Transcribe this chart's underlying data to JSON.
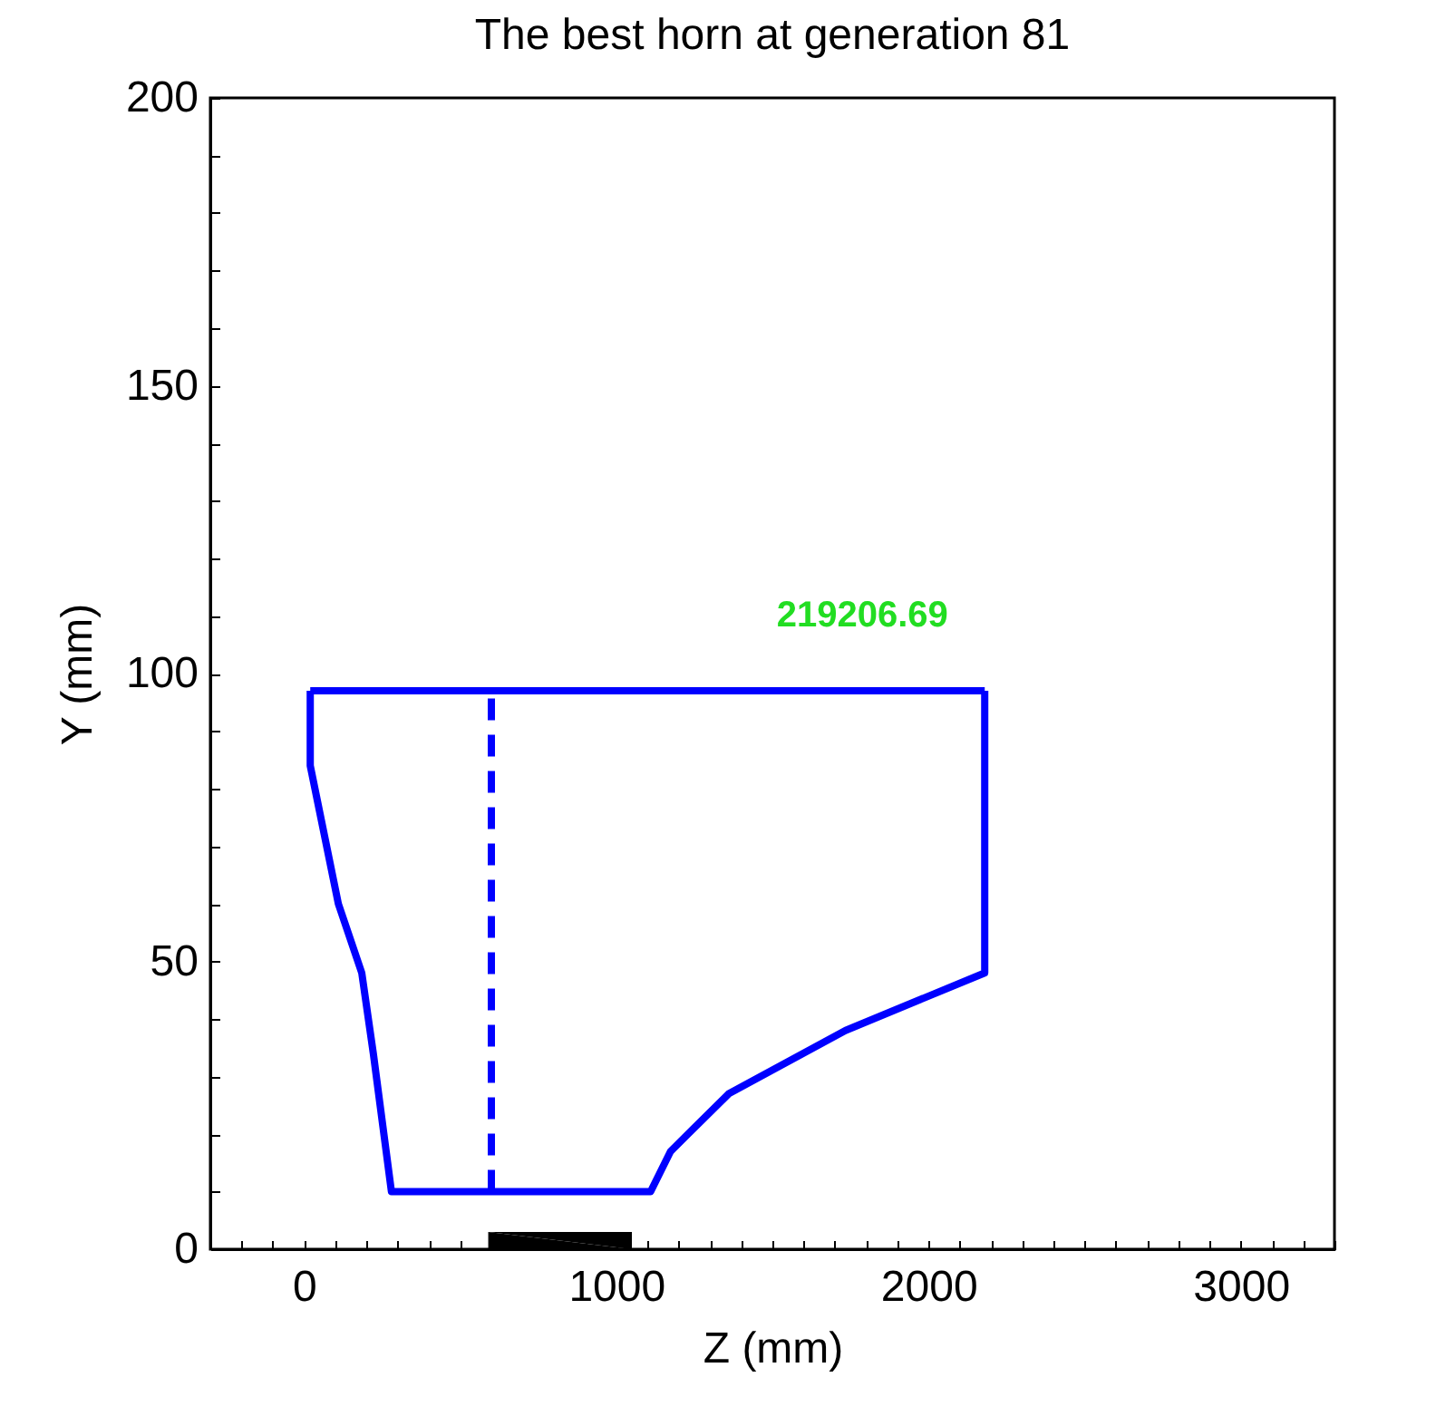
{
  "chart_data": {
    "type": "line",
    "title": "The best horn at generation 81",
    "xlabel": "Z (mm)",
    "ylabel": "Y (mm)",
    "xlim": [
      -300,
      3300
    ],
    "ylim": [
      0,
      200
    ],
    "xticks": [
      {
        "value": -300,
        "label": null
      },
      {
        "value": -200,
        "label": null
      },
      {
        "value": -100,
        "label": null
      },
      0,
      {
        "value": 100,
        "label": null
      },
      {
        "value": 200,
        "label": null
      },
      {
        "value": 300,
        "label": null
      },
      {
        "value": 400,
        "label": null
      },
      {
        "value": 500,
        "label": null
      },
      {
        "value": 600,
        "label": null
      },
      {
        "value": 700,
        "label": null
      },
      {
        "value": 800,
        "label": null
      },
      {
        "value": 900,
        "label": null
      },
      1000,
      {
        "value": 1100,
        "label": null
      },
      {
        "value": 1200,
        "label": null
      },
      {
        "value": 1300,
        "label": null
      },
      {
        "value": 1400,
        "label": null
      },
      {
        "value": 1500,
        "label": null
      },
      {
        "value": 1600,
        "label": null
      },
      {
        "value": 1700,
        "label": null
      },
      {
        "value": 1800,
        "label": null
      },
      {
        "value": 1900,
        "label": null
      },
      2000,
      {
        "value": 2100,
        "label": null
      },
      {
        "value": 2200,
        "label": null
      },
      {
        "value": 2300,
        "label": null
      },
      {
        "value": 2400,
        "label": null
      },
      {
        "value": 2500,
        "label": null
      },
      {
        "value": 2600,
        "label": null
      },
      {
        "value": 2700,
        "label": null
      },
      {
        "value": 2800,
        "label": null
      },
      {
        "value": 2900,
        "label": null
      },
      3000,
      {
        "value": 3100,
        "label": null
      },
      {
        "value": 3200,
        "label": null
      },
      {
        "value": 3300,
        "label": null
      }
    ],
    "yticks": [
      0,
      {
        "value": 10,
        "label": null
      },
      {
        "value": 20,
        "label": null
      },
      {
        "value": 30,
        "label": null
      },
      {
        "value": 40,
        "label": null
      },
      50,
      {
        "value": 60,
        "label": null
      },
      {
        "value": 70,
        "label": null
      },
      {
        "value": 80,
        "label": null
      },
      {
        "value": 90,
        "label": null
      },
      100,
      {
        "value": 110,
        "label": null
      },
      {
        "value": 120,
        "label": null
      },
      {
        "value": 130,
        "label": null
      },
      {
        "value": 140,
        "label": null
      },
      150,
      {
        "value": 160,
        "label": null
      },
      {
        "value": 170,
        "label": null
      },
      {
        "value": 180,
        "label": null
      },
      {
        "value": 190,
        "label": null
      },
      200
    ],
    "series": [
      {
        "type": "line",
        "color": "#0000ff",
        "x": [
          20,
          20,
          110,
          185,
          222,
          280,
          1110,
          1174,
          1360,
          1734,
          2180,
          2180
        ],
        "values": [
          97,
          84,
          60,
          48,
          34,
          10,
          10,
          17,
          27,
          38,
          48,
          97
        ]
      },
      {
        "type": "line",
        "color": "#0000ff",
        "x": [
          20,
          2180
        ],
        "values": [
          97,
          97
        ]
      },
      {
        "type": "line",
        "color": "#0000ff",
        "line_style": "dashed",
        "x": [
          600,
          600
        ],
        "values": [
          10,
          97
        ]
      },
      {
        "type": "area",
        "color": "#000000",
        "x": [
          590,
          1050
        ],
        "values": [
          3,
          3
        ]
      }
    ],
    "annotations": [
      "219206.69"
    ]
  }
}
